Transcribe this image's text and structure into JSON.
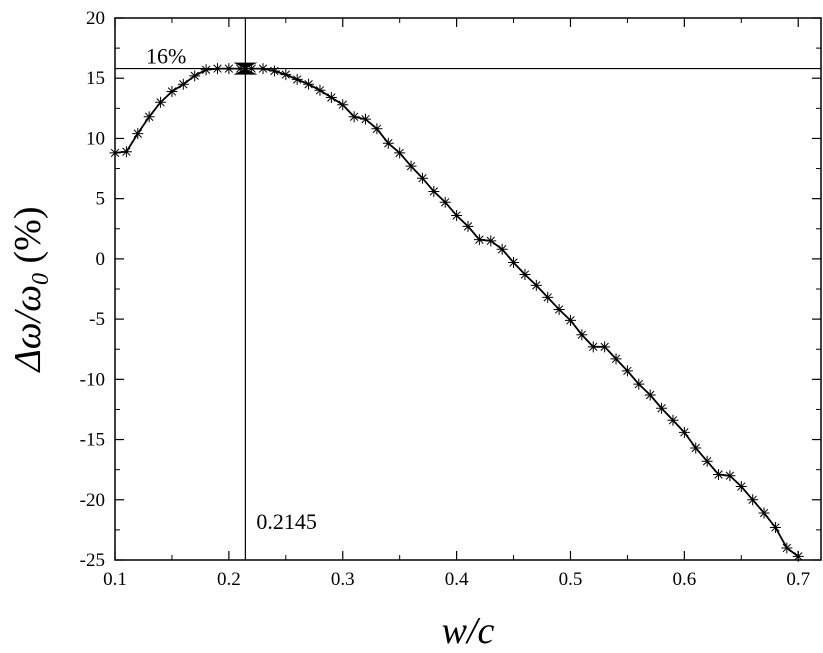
{
  "chart_data": {
    "type": "line",
    "title": "",
    "xlabel": "w/c",
    "ylabel": "Δω/ω0 (%)",
    "ylabel_parts": {
      "delta_omega": "Δω/ω",
      "subscript": "0",
      "unit": " (%)"
    },
    "xlim": [
      0.1,
      0.72
    ],
    "ylim": [
      -25,
      20
    ],
    "xticks": [
      0.1,
      0.2,
      0.3,
      0.4,
      0.5,
      0.6,
      0.7
    ],
    "xtick_labels": [
      "0.1",
      "0.2",
      "0.3",
      "0.4",
      "0.5",
      "0.6",
      "0.7"
    ],
    "yticks": [
      -25,
      -20,
      -15,
      -10,
      -5,
      0,
      5,
      10,
      15,
      20
    ],
    "ytick_labels": [
      "-25",
      "-20",
      "-15",
      "-10",
      "-5",
      "0",
      "5",
      "10",
      "15",
      "20"
    ],
    "grid": false,
    "legend": "none",
    "marker": "asterisk",
    "annotations": {
      "hline_y": 15.8,
      "vline_x": 0.2145,
      "peak_label": "16%",
      "x_label": "0.2145"
    },
    "series": [
      {
        "x": [
          0.1,
          0.11,
          0.12,
          0.13,
          0.14,
          0.15,
          0.16,
          0.17,
          0.18,
          0.19,
          0.2,
          0.21,
          0.22,
          0.23,
          0.24,
          0.25,
          0.26,
          0.27,
          0.28,
          0.29,
          0.3,
          0.31,
          0.32,
          0.33,
          0.34,
          0.35,
          0.36,
          0.37,
          0.38,
          0.39,
          0.4,
          0.41,
          0.42,
          0.43,
          0.44,
          0.45,
          0.46,
          0.47,
          0.48,
          0.49,
          0.5,
          0.51,
          0.52,
          0.53,
          0.54,
          0.55,
          0.56,
          0.57,
          0.58,
          0.59,
          0.6,
          0.61,
          0.62,
          0.63,
          0.64,
          0.65,
          0.66,
          0.67,
          0.68,
          0.69,
          0.7
        ],
        "values": [
          8.8,
          8.9,
          10.4,
          11.8,
          13.0,
          13.9,
          14.5,
          15.2,
          15.7,
          15.8,
          15.8,
          15.8,
          15.8,
          15.8,
          15.6,
          15.3,
          14.9,
          14.5,
          14.0,
          13.4,
          12.8,
          11.8,
          11.6,
          10.8,
          9.6,
          8.8,
          7.7,
          6.7,
          5.6,
          4.7,
          3.6,
          2.7,
          1.6,
          1.5,
          0.8,
          -0.3,
          -1.3,
          -2.2,
          -3.2,
          -4.2,
          -5.1,
          -6.3,
          -7.3,
          -7.3,
          -8.3,
          -9.3,
          -10.4,
          -11.3,
          -12.4,
          -13.4,
          -14.4,
          -15.7,
          -16.8,
          -17.9,
          -18.0,
          -18.9,
          -20.0,
          -21.1,
          -22.3,
          -24.0,
          -24.7
        ]
      }
    ]
  }
}
